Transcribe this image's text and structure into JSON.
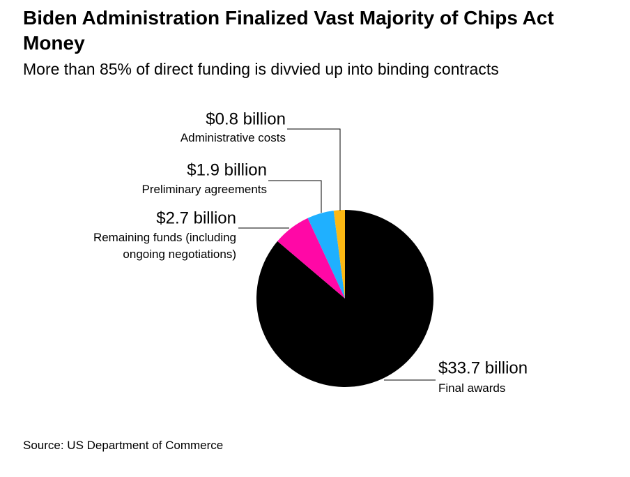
{
  "chart_data": {
    "type": "pie",
    "title": "Biden Administration Finalized Vast Majority of Chips Act Money",
    "subtitle": "More than 85% of direct funding is divvied up into binding contracts",
    "categories": [
      "Final awards",
      "Remaining funds (including ongoing negotiations)",
      "Preliminary agreements",
      "Administrative costs"
    ],
    "values": [
      33.7,
      2.7,
      1.9,
      0.8
    ],
    "value_labels": [
      "$33.7 billion",
      "$2.7 billion",
      "$1.9 billion",
      "$0.8 billion"
    ],
    "colors": [
      "#000000",
      "#ff08a6",
      "#1fb0ff",
      "#fcb813"
    ],
    "source": "Source: US Department of Commerce"
  }
}
